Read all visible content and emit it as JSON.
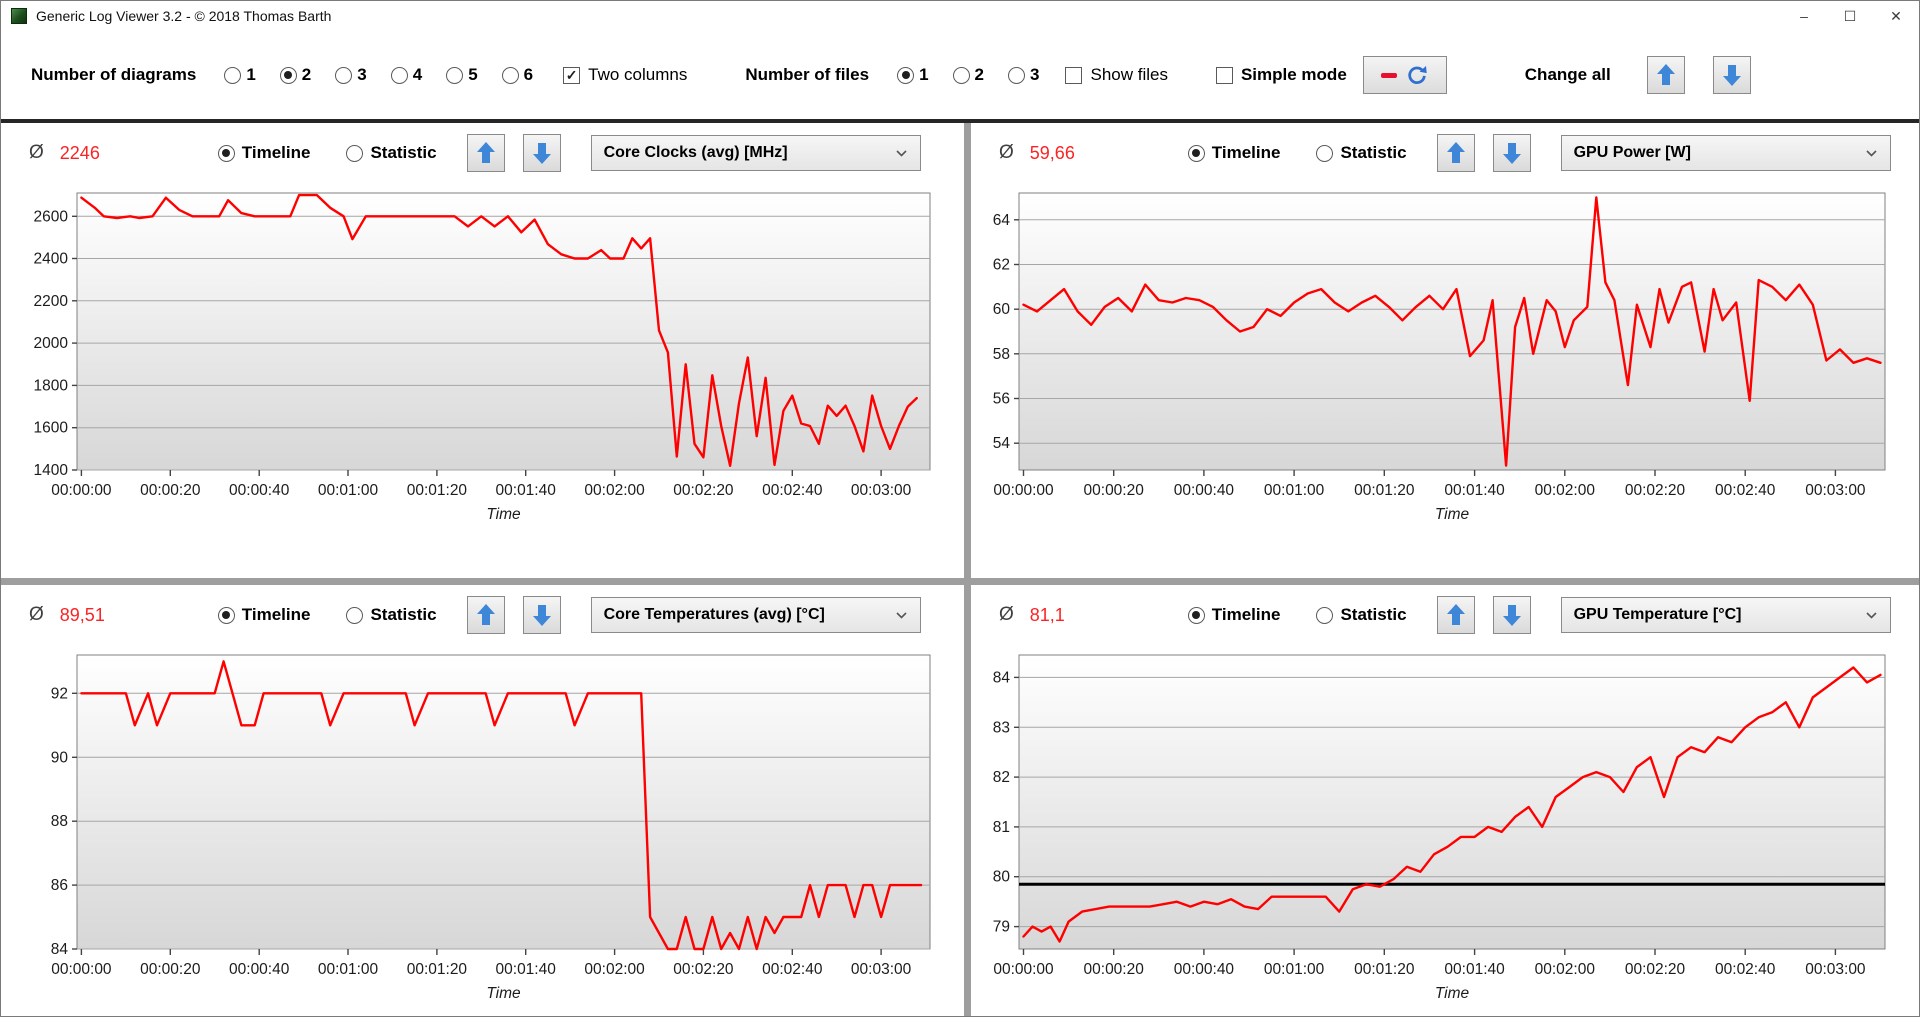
{
  "window": {
    "title": "Generic Log Viewer 3.2 - © 2018 Thomas Barth",
    "controls": {
      "minimize": "–",
      "maximize": "☐",
      "close": "✕"
    }
  },
  "toolbar": {
    "diagrams_label": "Number of diagrams",
    "diagram_options": [
      "1",
      "2",
      "3",
      "4",
      "5",
      "6"
    ],
    "diagram_selected": "2",
    "two_columns_label": "Two columns",
    "two_columns_checked": true,
    "files_label": "Number of files",
    "file_options": [
      "1",
      "2",
      "3"
    ],
    "file_selected": "1",
    "show_files_label": "Show files",
    "show_files_checked": false,
    "simple_mode_label": "Simple mode",
    "simple_mode_checked": false,
    "change_all_label": "Change all"
  },
  "panels": [
    {
      "avg_symbol": "Ø",
      "average": "2246",
      "timeline_label": "Timeline",
      "statistic_label": "Statistic",
      "mode": "timeline",
      "metric": "Core Clocks (avg) [MHz]"
    },
    {
      "avg_symbol": "Ø",
      "average": "59,66",
      "timeline_label": "Timeline",
      "statistic_label": "Statistic",
      "mode": "timeline",
      "metric": "GPU Power [W]"
    },
    {
      "avg_symbol": "Ø",
      "average": "89,51",
      "timeline_label": "Timeline",
      "statistic_label": "Statistic",
      "mode": "timeline",
      "metric": "Core Temperatures (avg) [°C]"
    },
    {
      "avg_symbol": "Ø",
      "average": "81,1",
      "timeline_label": "Timeline",
      "statistic_label": "Statistic",
      "mode": "timeline",
      "metric": "GPU Temperature [°C]"
    }
  ],
  "time_axis": {
    "axis_label": "Time",
    "seconds": [
      0,
      20,
      40,
      60,
      80,
      100,
      120,
      140,
      160,
      180
    ],
    "labels": [
      "00:00:00",
      "00:00:20",
      "00:00:40",
      "00:01:00",
      "00:01:20",
      "00:01:40",
      "00:02:00",
      "00:02:20",
      "00:02:40",
      "00:03:00"
    ]
  },
  "chart_data": [
    {
      "type": "line",
      "metric": "Core Clocks (avg) [MHz]",
      "xlabel": "Time",
      "ylim": [
        1400,
        2710
      ],
      "yticks": [
        2600,
        2400,
        2200,
        2000,
        1800,
        1600,
        1400
      ],
      "xlim": [
        -1,
        191
      ],
      "left_margin": 76,
      "line_color": "#ff0000",
      "grid": true,
      "points": [
        [
          0,
          2688
        ],
        [
          3,
          2640
        ],
        [
          5,
          2600
        ],
        [
          8,
          2592
        ],
        [
          11,
          2600
        ],
        [
          13,
          2592
        ],
        [
          16,
          2600
        ],
        [
          19,
          2688
        ],
        [
          22,
          2630
        ],
        [
          25,
          2600
        ],
        [
          28,
          2600
        ],
        [
          31,
          2600
        ],
        [
          33,
          2676
        ],
        [
          36,
          2615
        ],
        [
          39,
          2600
        ],
        [
          43,
          2600
        ],
        [
          47,
          2600
        ],
        [
          49,
          2700
        ],
        [
          53,
          2700
        ],
        [
          56,
          2640
        ],
        [
          59,
          2600
        ],
        [
          61,
          2492
        ],
        [
          64,
          2600
        ],
        [
          68,
          2600
        ],
        [
          74,
          2600
        ],
        [
          80,
          2600
        ],
        [
          84,
          2600
        ],
        [
          87,
          2552
        ],
        [
          90,
          2600
        ],
        [
          93,
          2552
        ],
        [
          96,
          2600
        ],
        [
          99,
          2524
        ],
        [
          102,
          2584
        ],
        [
          105,
          2468
        ],
        [
          108,
          2420
        ],
        [
          111,
          2400
        ],
        [
          114,
          2400
        ],
        [
          117,
          2440
        ],
        [
          119,
          2400
        ],
        [
          122,
          2400
        ],
        [
          124,
          2496
        ],
        [
          126,
          2448
        ],
        [
          128,
          2496
        ],
        [
          130,
          2060
        ],
        [
          132,
          1956
        ],
        [
          134,
          1464
        ],
        [
          136,
          1900
        ],
        [
          138,
          1524
        ],
        [
          140,
          1460
        ],
        [
          142,
          1848
        ],
        [
          144,
          1608
        ],
        [
          146,
          1420
        ],
        [
          148,
          1716
        ],
        [
          150,
          1932
        ],
        [
          152,
          1560
        ],
        [
          154,
          1836
        ],
        [
          156,
          1424
        ],
        [
          158,
          1680
        ],
        [
          160,
          1752
        ],
        [
          162,
          1620
        ],
        [
          164,
          1608
        ],
        [
          166,
          1524
        ],
        [
          168,
          1704
        ],
        [
          170,
          1656
        ],
        [
          172,
          1704
        ],
        [
          174,
          1608
        ],
        [
          176,
          1488
        ],
        [
          178,
          1752
        ],
        [
          180,
          1608
        ],
        [
          182,
          1500
        ],
        [
          184,
          1608
        ],
        [
          186,
          1700
        ],
        [
          188,
          1740
        ]
      ]
    },
    {
      "type": "line",
      "metric": "GPU Power [W]",
      "xlabel": "Time",
      "ylim": [
        52.8,
        65.2
      ],
      "yticks": [
        64,
        62,
        60,
        58,
        56,
        54
      ],
      "xlim": [
        -1,
        191
      ],
      "left_margin": 48,
      "line_color": "#ff0000",
      "grid": true,
      "points": [
        [
          0,
          60.2
        ],
        [
          3,
          59.9
        ],
        [
          6,
          60.4
        ],
        [
          9,
          60.9
        ],
        [
          12,
          59.9
        ],
        [
          15,
          59.3
        ],
        [
          18,
          60.1
        ],
        [
          21,
          60.5
        ],
        [
          24,
          59.9
        ],
        [
          27,
          61.1
        ],
        [
          30,
          60.4
        ],
        [
          33,
          60.3
        ],
        [
          36,
          60.5
        ],
        [
          39,
          60.4
        ],
        [
          42,
          60.1
        ],
        [
          45,
          59.5
        ],
        [
          48,
          59.0
        ],
        [
          51,
          59.2
        ],
        [
          54,
          60.0
        ],
        [
          57,
          59.7
        ],
        [
          60,
          60.3
        ],
        [
          63,
          60.7
        ],
        [
          66,
          60.9
        ],
        [
          69,
          60.3
        ],
        [
          72,
          59.9
        ],
        [
          75,
          60.3
        ],
        [
          78,
          60.6
        ],
        [
          81,
          60.1
        ],
        [
          84,
          59.5
        ],
        [
          87,
          60.1
        ],
        [
          90,
          60.6
        ],
        [
          93,
          60.0
        ],
        [
          96,
          60.9
        ],
        [
          99,
          57.9
        ],
        [
          102,
          58.6
        ],
        [
          104,
          60.4
        ],
        [
          107,
          53.0
        ],
        [
          109,
          59.2
        ],
        [
          111,
          60.5
        ],
        [
          113,
          58.0
        ],
        [
          116,
          60.4
        ],
        [
          118,
          59.9
        ],
        [
          120,
          58.3
        ],
        [
          122,
          59.5
        ],
        [
          125,
          60.1
        ],
        [
          127,
          65.0
        ],
        [
          129,
          61.2
        ],
        [
          131,
          60.4
        ],
        [
          134,
          56.6
        ],
        [
          136,
          60.2
        ],
        [
          139,
          58.3
        ],
        [
          141,
          60.9
        ],
        [
          143,
          59.4
        ],
        [
          146,
          61.0
        ],
        [
          148,
          61.2
        ],
        [
          151,
          58.1
        ],
        [
          153,
          60.9
        ],
        [
          155,
          59.5
        ],
        [
          158,
          60.3
        ],
        [
          161,
          55.9
        ],
        [
          163,
          61.3
        ],
        [
          166,
          61.0
        ],
        [
          169,
          60.4
        ],
        [
          172,
          61.1
        ],
        [
          175,
          60.2
        ],
        [
          178,
          57.7
        ],
        [
          181,
          58.2
        ],
        [
          184,
          57.6
        ],
        [
          187,
          57.8
        ],
        [
          190,
          57.6
        ]
      ]
    },
    {
      "type": "line",
      "metric": "Core Temperatures (avg) [°C]",
      "xlabel": "Time",
      "ylim": [
        84,
        93.2
      ],
      "yticks": [
        92,
        90,
        88,
        86,
        84
      ],
      "xlim": [
        -1,
        191
      ],
      "left_margin": 76,
      "line_color": "#ff0000",
      "grid": true,
      "points": [
        [
          0,
          92
        ],
        [
          6,
          92
        ],
        [
          10,
          92
        ],
        [
          12,
          91
        ],
        [
          15,
          92
        ],
        [
          17,
          91
        ],
        [
          20,
          92
        ],
        [
          26,
          92
        ],
        [
          30,
          92
        ],
        [
          32,
          93
        ],
        [
          34,
          92
        ],
        [
          36,
          91
        ],
        [
          39,
          91
        ],
        [
          41,
          92
        ],
        [
          48,
          92
        ],
        [
          54,
          92
        ],
        [
          56,
          91
        ],
        [
          59,
          92
        ],
        [
          66,
          92
        ],
        [
          73,
          92
        ],
        [
          75,
          91
        ],
        [
          78,
          92
        ],
        [
          85,
          92
        ],
        [
          91,
          92
        ],
        [
          93,
          91
        ],
        [
          96,
          92
        ],
        [
          103,
          92
        ],
        [
          109,
          92
        ],
        [
          111,
          91
        ],
        [
          114,
          92
        ],
        [
          121,
          92
        ],
        [
          126,
          92
        ],
        [
          128,
          85
        ],
        [
          130,
          84.5
        ],
        [
          132,
          84
        ],
        [
          134,
          84
        ],
        [
          136,
          85
        ],
        [
          138,
          84
        ],
        [
          140,
          84
        ],
        [
          142,
          85
        ],
        [
          144,
          84
        ],
        [
          146,
          84.5
        ],
        [
          148,
          84
        ],
        [
          150,
          85
        ],
        [
          152,
          84
        ],
        [
          154,
          85
        ],
        [
          156,
          84.5
        ],
        [
          158,
          85
        ],
        [
          160,
          85
        ],
        [
          162,
          85
        ],
        [
          164,
          86
        ],
        [
          166,
          85
        ],
        [
          168,
          86
        ],
        [
          170,
          86
        ],
        [
          172,
          86
        ],
        [
          174,
          85
        ],
        [
          176,
          86
        ],
        [
          178,
          86
        ],
        [
          180,
          85
        ],
        [
          182,
          86
        ],
        [
          184,
          86
        ],
        [
          186,
          86
        ],
        [
          189,
          86
        ]
      ]
    },
    {
      "type": "line",
      "metric": "GPU Temperature [°C]",
      "xlabel": "Time",
      "ylim": [
        78.55,
        84.45
      ],
      "yticks": [
        84,
        83,
        82,
        81,
        80,
        79
      ],
      "xlim": [
        -1,
        191
      ],
      "left_margin": 48,
      "line_color": "#ff0000",
      "grid": true,
      "ref_line": 79.85,
      "ref_line_color": "#000000",
      "points": [
        [
          0,
          78.8
        ],
        [
          2,
          79.0
        ],
        [
          4,
          78.9
        ],
        [
          6,
          79.0
        ],
        [
          8,
          78.7
        ],
        [
          10,
          79.1
        ],
        [
          13,
          79.3
        ],
        [
          16,
          79.35
        ],
        [
          19,
          79.4
        ],
        [
          22,
          79.4
        ],
        [
          25,
          79.4
        ],
        [
          28,
          79.4
        ],
        [
          31,
          79.45
        ],
        [
          34,
          79.5
        ],
        [
          37,
          79.4
        ],
        [
          40,
          79.5
        ],
        [
          43,
          79.45
        ],
        [
          46,
          79.55
        ],
        [
          49,
          79.4
        ],
        [
          52,
          79.35
        ],
        [
          55,
          79.6
        ],
        [
          58,
          79.6
        ],
        [
          61,
          79.6
        ],
        [
          64,
          79.6
        ],
        [
          67,
          79.6
        ],
        [
          70,
          79.3
        ],
        [
          73,
          79.75
        ],
        [
          76,
          79.85
        ],
        [
          79,
          79.8
        ],
        [
          82,
          79.95
        ],
        [
          85,
          80.2
        ],
        [
          88,
          80.1
        ],
        [
          91,
          80.45
        ],
        [
          94,
          80.6
        ],
        [
          97,
          80.8
        ],
        [
          100,
          80.8
        ],
        [
          103,
          81.0
        ],
        [
          106,
          80.9
        ],
        [
          109,
          81.2
        ],
        [
          112,
          81.4
        ],
        [
          115,
          81.0
        ],
        [
          118,
          81.6
        ],
        [
          121,
          81.8
        ],
        [
          124,
          82.0
        ],
        [
          127,
          82.1
        ],
        [
          130,
          82.0
        ],
        [
          133,
          81.7
        ],
        [
          136,
          82.2
        ],
        [
          139,
          82.4
        ],
        [
          142,
          81.6
        ],
        [
          145,
          82.4
        ],
        [
          148,
          82.6
        ],
        [
          151,
          82.5
        ],
        [
          154,
          82.8
        ],
        [
          157,
          82.7
        ],
        [
          160,
          83.0
        ],
        [
          163,
          83.2
        ],
        [
          166,
          83.3
        ],
        [
          169,
          83.5
        ],
        [
          172,
          83.0
        ],
        [
          175,
          83.6
        ],
        [
          178,
          83.8
        ],
        [
          181,
          84.0
        ],
        [
          184,
          84.2
        ],
        [
          187,
          83.9
        ],
        [
          190,
          84.05
        ]
      ]
    }
  ]
}
